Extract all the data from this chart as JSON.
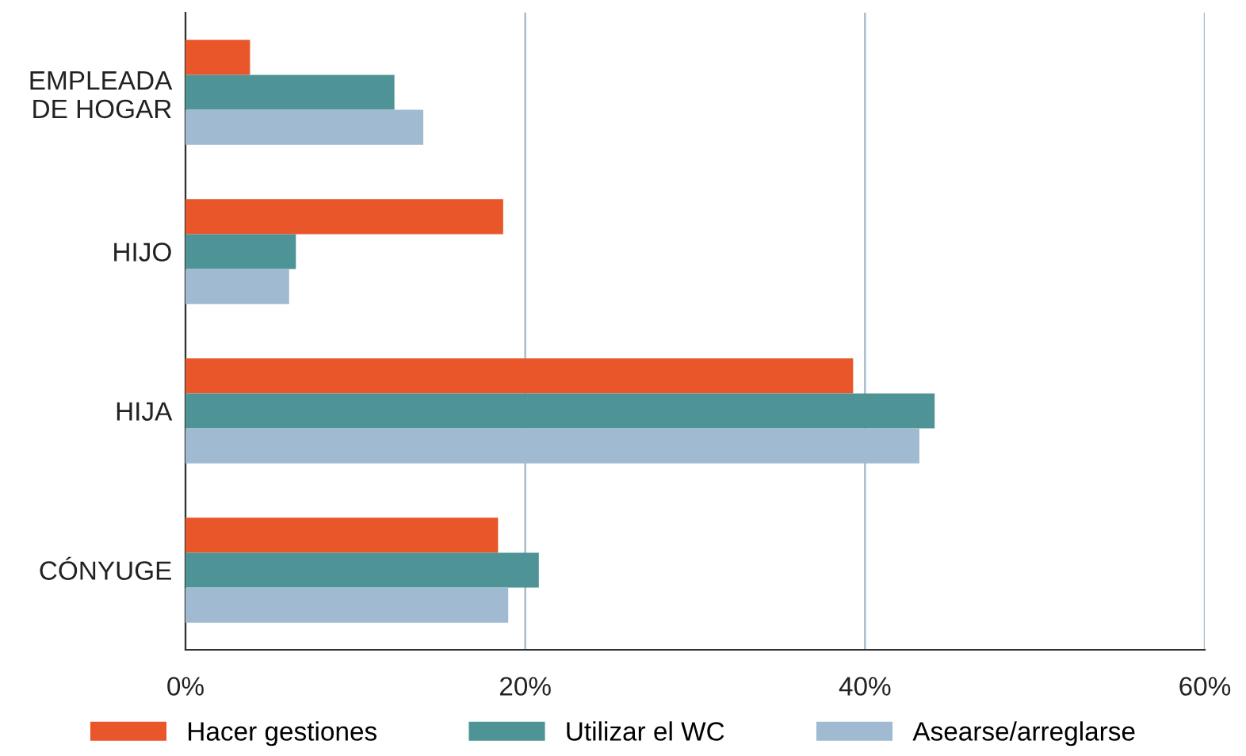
{
  "chart_data": {
    "type": "bar",
    "orientation": "horizontal",
    "categories": [
      "EMPLEADA\nDE HOGAR",
      "HIJO",
      "HIJA",
      "CÓNYUGE"
    ],
    "series": [
      {
        "name": "Hacer gestiones",
        "color": "#e8562a",
        "values": [
          3.8,
          18.7,
          39.3,
          18.4
        ]
      },
      {
        "name": "Utilizar el WC",
        "color": "#4e9496",
        "values": [
          12.3,
          6.5,
          44.1,
          20.8
        ]
      },
      {
        "name": "Asearse/arreglarse",
        "color": "#9fbad1",
        "values": [
          14.0,
          6.1,
          43.2,
          19.0
        ]
      }
    ],
    "xlim": [
      0,
      60
    ],
    "xticks": [
      {
        "value": 0,
        "label": "0%"
      },
      {
        "value": 20,
        "label": "20%"
      },
      {
        "value": 40,
        "label": "40%"
      },
      {
        "value": 60,
        "label": "60%"
      }
    ],
    "grid": "x",
    "legend": "bottom"
  }
}
